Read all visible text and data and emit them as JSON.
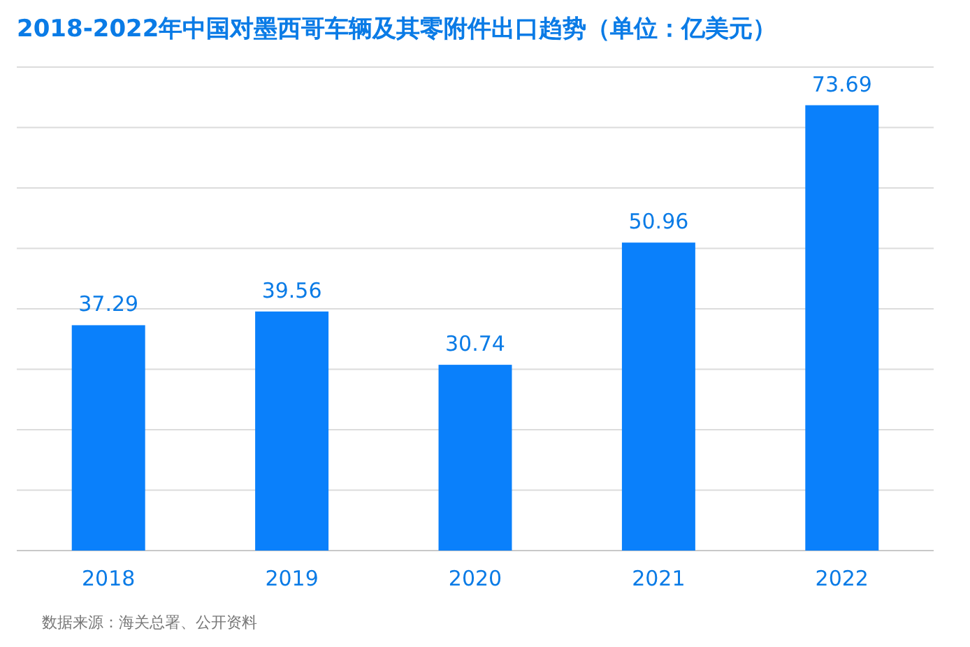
{
  "chart_data": {
    "type": "bar",
    "title": "2018-2022年中国对墨西哥车辆及其零附件出口趋势（单位：亿美元）",
    "categories": [
      "2018",
      "2019",
      "2020",
      "2021",
      "2022"
    ],
    "values": [
      37.29,
      39.56,
      30.74,
      50.96,
      73.69
    ],
    "color": "#0a80fb",
    "ylim": [
      0,
      80
    ],
    "yticks": [
      {
        "value": 0,
        "label": null
      },
      {
        "value": 10,
        "label": null
      },
      {
        "value": 20,
        "label": null
      },
      {
        "value": 30,
        "label": null
      },
      {
        "value": 40,
        "label": null
      },
      {
        "value": 50,
        "label": null
      },
      {
        "value": 60,
        "label": null
      },
      {
        "value": 70,
        "label": null
      },
      {
        "value": 80,
        "label": null
      }
    ],
    "tick_labels": "x",
    "grid": "y",
    "data_labels": true,
    "annotations": [
      "数据来源：海关总署、公开资料"
    ]
  }
}
